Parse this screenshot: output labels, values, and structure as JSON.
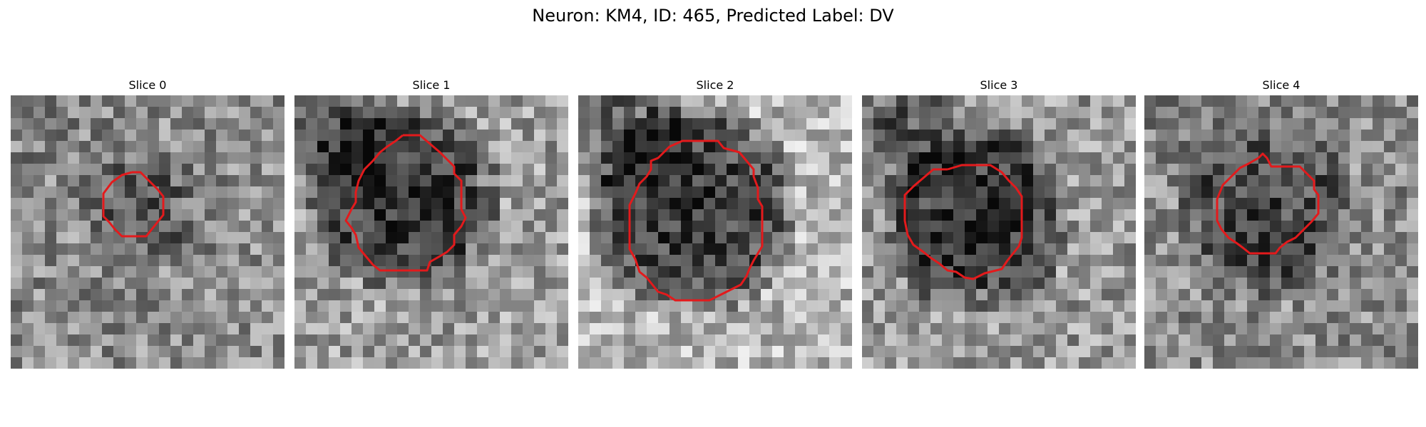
{
  "figure": {
    "title": "Neuron: KM4, ID: 465, Predicted Label: DV",
    "contour_color": "#e31a1c",
    "colormap": "grayscale",
    "panels": [
      {
        "title": "Slice 0",
        "seed": 11,
        "background_mean": 0.55,
        "blob_darkness": 0.22,
        "upper_left_shadow": 0.05
      },
      {
        "title": "Slice 1",
        "seed": 23,
        "background_mean": 0.62,
        "blob_darkness": 0.45,
        "upper_left_shadow": 0.35
      },
      {
        "title": "Slice 2",
        "seed": 37,
        "background_mean": 0.72,
        "blob_darkness": 0.55,
        "upper_left_shadow": 0.45
      },
      {
        "title": "Slice 3",
        "seed": 41,
        "background_mean": 0.6,
        "blob_darkness": 0.45,
        "upper_left_shadow": 0.3
      },
      {
        "title": "Slice 4",
        "seed": 53,
        "background_mean": 0.55,
        "blob_darkness": 0.3,
        "upper_left_shadow": 0.1
      }
    ]
  }
}
